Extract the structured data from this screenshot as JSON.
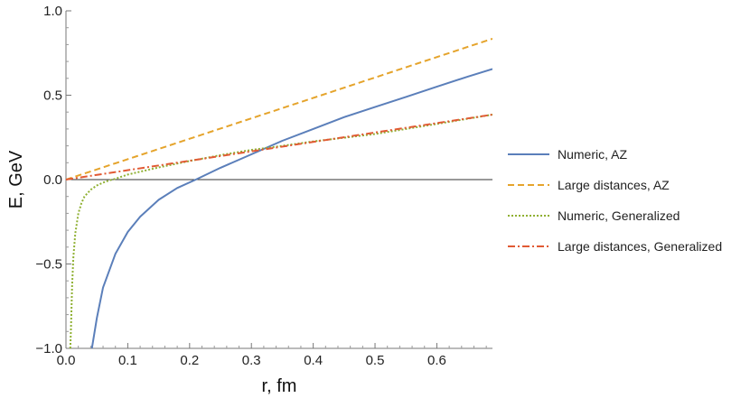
{
  "chart_data": {
    "type": "line",
    "title": "",
    "xlabel": "r, fm",
    "ylabel": "E, GeV",
    "xlim": [
      0,
      0.69
    ],
    "ylim": [
      -1.0,
      1.0
    ],
    "grid": false,
    "legend_position": "right",
    "x_ticks": [
      0.0,
      0.1,
      0.2,
      0.3,
      0.4,
      0.5,
      0.6
    ],
    "x_tick_labels": [
      "0.0",
      "0.1",
      "0.2",
      "0.3",
      "0.4",
      "0.5",
      "0.6"
    ],
    "y_ticks": [
      -1.0,
      -0.5,
      0.0,
      0.5,
      1.0
    ],
    "y_tick_labels": [
      "−1.0",
      "−0.5",
      "0.0",
      "0.5",
      "1.0"
    ],
    "series": [
      {
        "name": "Numeric, AZ",
        "color": "#5b7fba",
        "style": "solid",
        "x": [
          0.042,
          0.05,
          0.06,
          0.08,
          0.1,
          0.12,
          0.15,
          0.18,
          0.21,
          0.25,
          0.3,
          0.35,
          0.4,
          0.45,
          0.5,
          0.55,
          0.6,
          0.65,
          0.69
        ],
        "y": [
          -1.0,
          -0.82,
          -0.64,
          -0.44,
          -0.31,
          -0.22,
          -0.12,
          -0.05,
          0.0,
          0.07,
          0.15,
          0.23,
          0.3,
          0.37,
          0.43,
          0.49,
          0.55,
          0.61,
          0.655
        ]
      },
      {
        "name": "Large distances, AZ",
        "color": "#e5a42c",
        "style": "dashed",
        "x": [
          0.0,
          0.69
        ],
        "y": [
          0.0,
          0.835
        ]
      },
      {
        "name": "Numeric, Generalized",
        "color": "#8fb032",
        "style": "dotted",
        "x": [
          0.007,
          0.008,
          0.01,
          0.012,
          0.015,
          0.02,
          0.025,
          0.03,
          0.04,
          0.05,
          0.06,
          0.07,
          0.08,
          0.1,
          0.15,
          0.2,
          0.25,
          0.3,
          0.35,
          0.4,
          0.5,
          0.6,
          0.69
        ],
        "y": [
          -1.0,
          -0.89,
          -0.63,
          -0.46,
          -0.32,
          -0.2,
          -0.14,
          -0.1,
          -0.06,
          -0.035,
          -0.018,
          -0.005,
          0.005,
          0.03,
          0.072,
          0.11,
          0.145,
          0.176,
          0.2,
          0.226,
          0.27,
          0.33,
          0.385
        ]
      },
      {
        "name": "Large distances, Generalized",
        "color": "#e15a34",
        "style": "dashdot",
        "x": [
          0.0,
          0.69
        ],
        "y": [
          0.0,
          0.385
        ]
      }
    ]
  }
}
